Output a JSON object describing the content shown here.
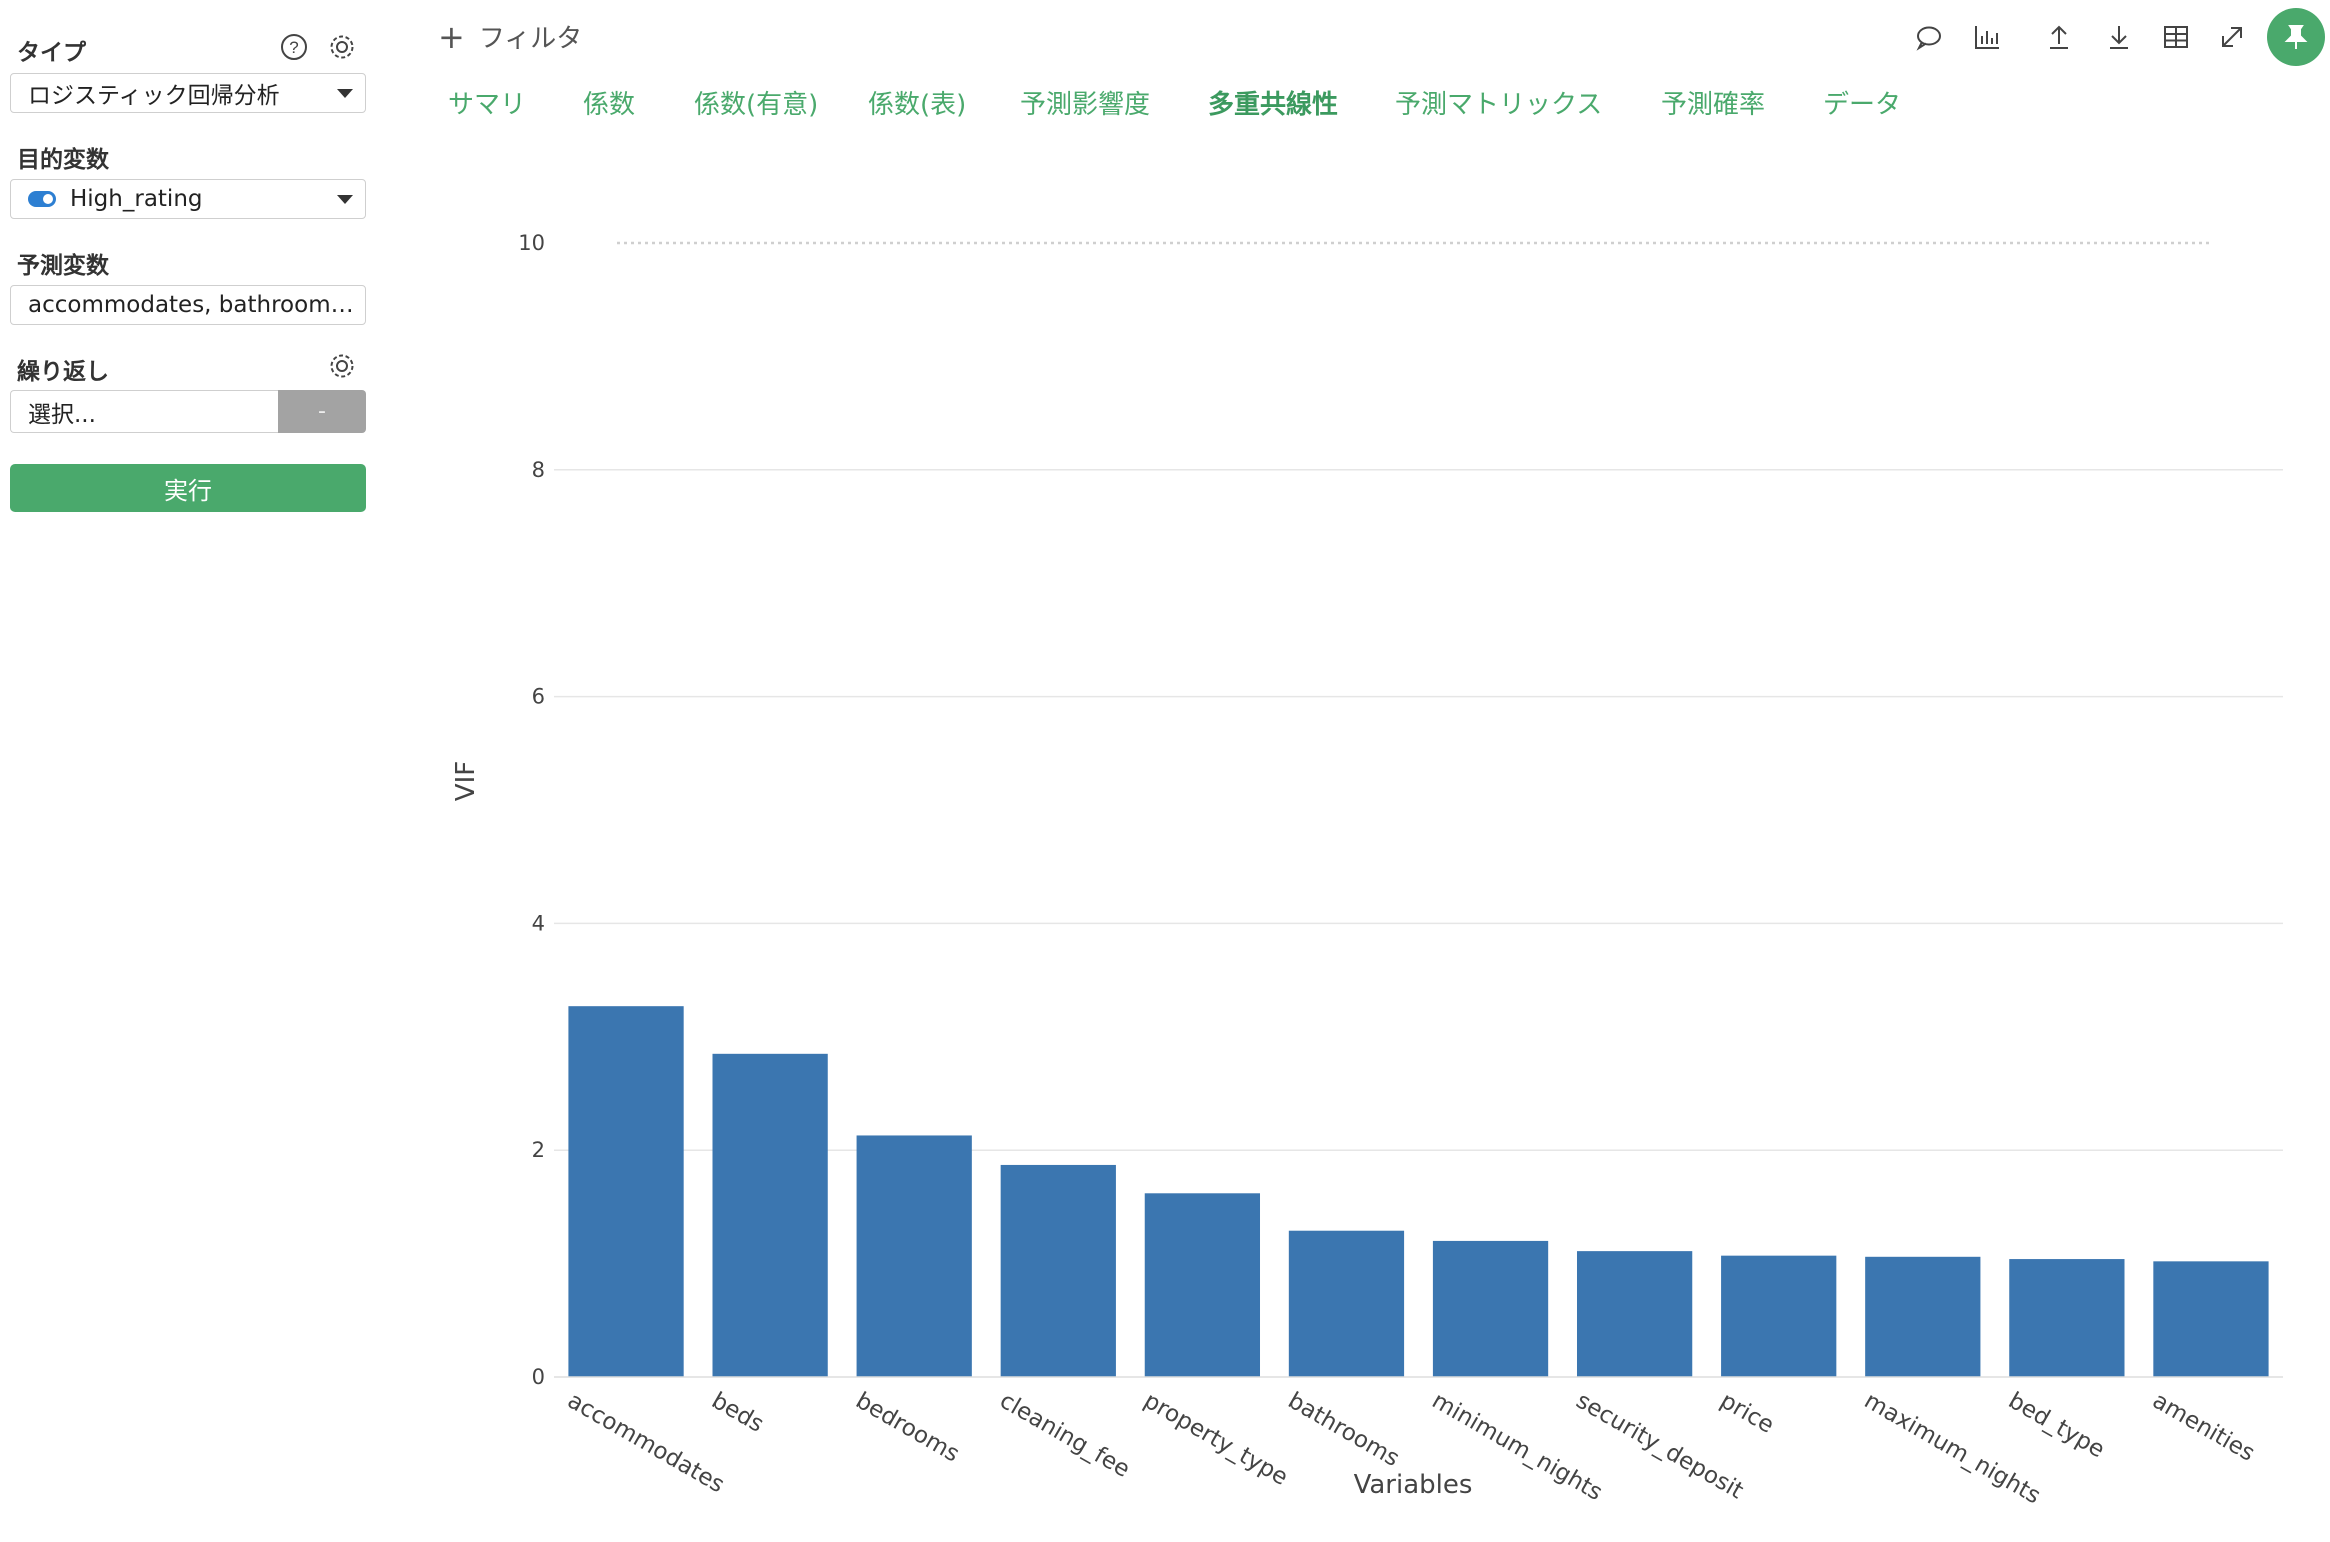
{
  "sidebar": {
    "type": {
      "label": "タイプ",
      "value": "ロジスティック回帰分析"
    },
    "target": {
      "label": "目的変数",
      "value": "High_rating"
    },
    "predictors": {
      "label": "予測変数",
      "value": "accommodates, bathroom…"
    },
    "repeat": {
      "label": "繰り返し",
      "placeholder": "選択...",
      "button": "-"
    },
    "run_button": "実行",
    "icons": {
      "help": "help-circle-icon",
      "settings": "gear-icon"
    }
  },
  "topbar": {
    "filter_icon": "+",
    "filter_label": "フィルタ",
    "icons": [
      "comment-icon",
      "chart-icon",
      "upload-icon",
      "download-icon",
      "table-icon",
      "expand-icon",
      "pin-icon"
    ]
  },
  "tabs": [
    {
      "label": "サマリ",
      "active": false
    },
    {
      "label": "係数",
      "active": false
    },
    {
      "label": "係数(有意)",
      "active": false
    },
    {
      "label": "係数(表)",
      "active": false
    },
    {
      "label": "予測影響度",
      "active": false
    },
    {
      "label": "多重共線性",
      "active": true
    },
    {
      "label": "予測マトリックス",
      "active": false
    },
    {
      "label": "予測確率",
      "active": false
    },
    {
      "label": "データ",
      "active": false
    }
  ],
  "colors": {
    "accent": "#4aa96c",
    "bar": "#3b76b0",
    "toggle": "#2d7fd2"
  },
  "chart_data": {
    "type": "bar",
    "categories": [
      "accommodates",
      "beds",
      "bedrooms",
      "cleaning_fee",
      "property_type",
      "bathrooms",
      "minimum_nights",
      "security_deposit",
      "price",
      "maximum_nights",
      "bed_type",
      "amenities"
    ],
    "values": [
      3.27,
      2.85,
      2.13,
      1.87,
      1.62,
      1.29,
      1.2,
      1.11,
      1.07,
      1.06,
      1.04,
      1.02
    ],
    "xlabel": "Variables",
    "ylabel": "VIF",
    "ylim": [
      0,
      10
    ],
    "yticks": [
      0,
      2,
      4,
      6,
      8,
      10
    ],
    "threshold_line": 10,
    "grid": true
  }
}
